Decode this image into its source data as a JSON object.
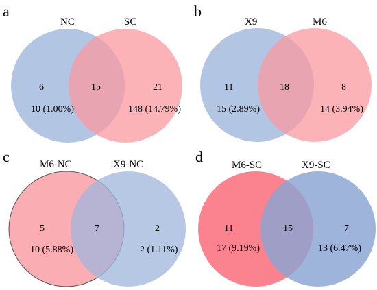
{
  "colors": {
    "blue": "#9fb6dc",
    "pink": "#f99aa0",
    "blue_d": "#8aa3d3",
    "pink_d": "#fa6d7c"
  },
  "panels": [
    {
      "letter": "a",
      "left_label": "NC",
      "right_label": "SC",
      "left_only": "6",
      "left_only_detail": "10 (1.00%)",
      "overlap": "15",
      "right_only": "21",
      "right_only_detail": "148 (14.79%)"
    },
    {
      "letter": "b",
      "left_label": "X9",
      "right_label": "M6",
      "left_only": "11",
      "left_only_detail": "15 (2.89%)",
      "overlap": "18",
      "right_only": "8",
      "right_only_detail": "14 (3.94%)"
    },
    {
      "letter": "c",
      "left_label": "M6-NC",
      "right_label": "X9-NC",
      "left_only": "5",
      "left_only_detail": "10 (5.88%)",
      "overlap": "7",
      "right_only": "2",
      "right_only_detail": "2 (1.11%)"
    },
    {
      "letter": "d",
      "left_label": "M6-SC",
      "right_label": "X9-SC",
      "left_only": "11",
      "left_only_detail": "17 (9.19%)",
      "overlap": "15",
      "right_only": "7",
      "right_only_detail": "13 (6.47%)"
    }
  ]
}
